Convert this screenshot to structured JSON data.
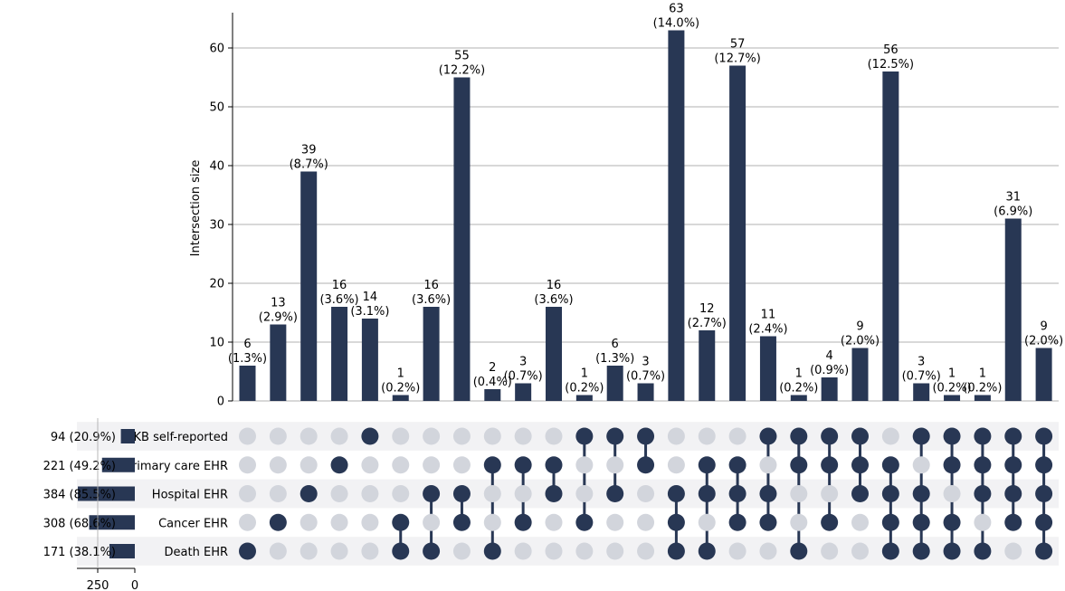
{
  "chart_data": {
    "type": "upset",
    "ylabel": "Intersection size",
    "ylim": [
      0,
      66
    ],
    "yticks": [
      0,
      10,
      20,
      30,
      40,
      50,
      60
    ],
    "grid": true,
    "colors": {
      "bar": "#283754",
      "dot_inactive": "#d2d5dc",
      "stripe": "#f2f2f4",
      "grid": "#b0b0b0"
    },
    "sets": [
      {
        "name": "UKB self-reported",
        "size_label": "94 (20.9%)",
        "size": 94
      },
      {
        "name": "Primary care EHR",
        "size_label": "221 (49.2%)",
        "size": 221
      },
      {
        "name": "Hospital EHR",
        "size_label": "384 (85.5%)",
        "size": 384
      },
      {
        "name": "Cancer EHR",
        "size_label": "308 (68.6%)",
        "size": 308
      },
      {
        "name": "Death EHR",
        "size_label": "171 (38.1%)",
        "size": 171
      }
    ],
    "set_size_ticks": [
      250,
      0
    ],
    "intersections": [
      {
        "value": 6,
        "pct": "(1.3%)",
        "members": [
          4
        ]
      },
      {
        "value": 13,
        "pct": "(2.9%)",
        "members": [
          3
        ]
      },
      {
        "value": 39,
        "pct": "(8.7%)",
        "members": [
          2
        ]
      },
      {
        "value": 16,
        "pct": "(3.6%)",
        "members": [
          1
        ]
      },
      {
        "value": 14,
        "pct": "(3.1%)",
        "members": [
          0
        ]
      },
      {
        "value": 1,
        "pct": "(0.2%)",
        "members": [
          3,
          4
        ]
      },
      {
        "value": 16,
        "pct": "(3.6%)",
        "members": [
          2,
          4
        ]
      },
      {
        "value": 55,
        "pct": "(12.2%)",
        "members": [
          2,
          3
        ]
      },
      {
        "value": 2,
        "pct": "(0.4%)",
        "members": [
          1,
          4
        ]
      },
      {
        "value": 3,
        "pct": "(0.7%)",
        "members": [
          1,
          3
        ]
      },
      {
        "value": 16,
        "pct": "(3.6%)",
        "members": [
          1,
          2
        ]
      },
      {
        "value": 1,
        "pct": "(0.2%)",
        "members": [
          0,
          3
        ]
      },
      {
        "value": 6,
        "pct": "(1.3%)",
        "members": [
          0,
          2
        ]
      },
      {
        "value": 3,
        "pct": "(0.7%)",
        "members": [
          0,
          1
        ]
      },
      {
        "value": 63,
        "pct": "(14.0%)",
        "members": [
          2,
          3,
          4
        ]
      },
      {
        "value": 12,
        "pct": "(2.7%)",
        "members": [
          1,
          2,
          4
        ]
      },
      {
        "value": 57,
        "pct": "(12.7%)",
        "members": [
          1,
          2,
          3
        ]
      },
      {
        "value": 11,
        "pct": "(2.4%)",
        "members": [
          0,
          2,
          3
        ]
      },
      {
        "value": 1,
        "pct": "(0.2%)",
        "members": [
          0,
          1,
          4
        ]
      },
      {
        "value": 4,
        "pct": "(0.9%)",
        "members": [
          0,
          1,
          3
        ]
      },
      {
        "value": 9,
        "pct": "(2.0%)",
        "members": [
          0,
          1,
          2
        ]
      },
      {
        "value": 56,
        "pct": "(12.5%)",
        "members": [
          1,
          2,
          3,
          4
        ]
      },
      {
        "value": 3,
        "pct": "(0.7%)",
        "members": [
          0,
          2,
          3,
          4
        ]
      },
      {
        "value": 1,
        "pct": "(0.2%)",
        "members": [
          0,
          1,
          3,
          4
        ]
      },
      {
        "value": 1,
        "pct": "(0.2%)",
        "members": [
          0,
          1,
          2,
          4
        ]
      },
      {
        "value": 31,
        "pct": "(6.9%)",
        "members": [
          0,
          1,
          2,
          3
        ]
      },
      {
        "value": 9,
        "pct": "(2.0%)",
        "members": [
          0,
          1,
          2,
          3,
          4
        ]
      }
    ]
  }
}
